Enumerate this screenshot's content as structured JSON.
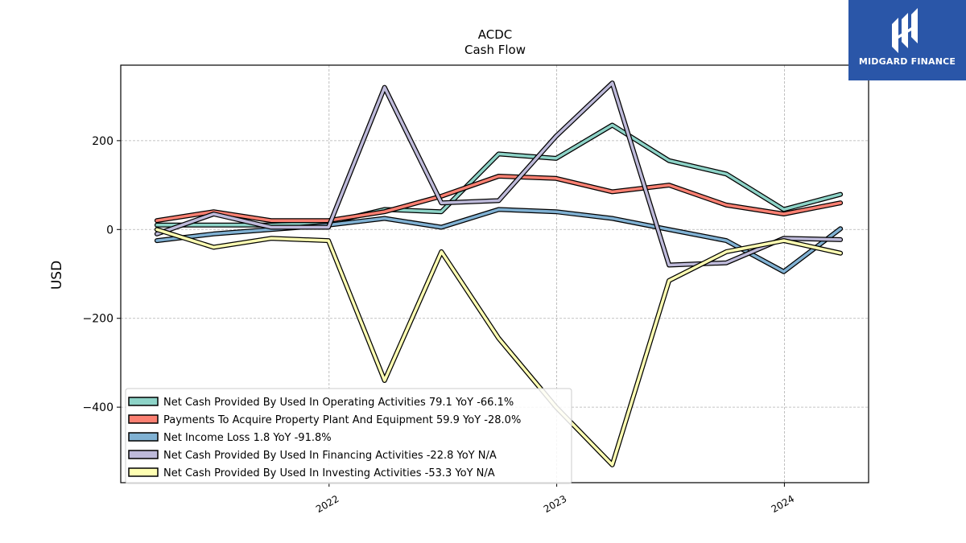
{
  "brand": {
    "name": "MIDGARD FINANCE",
    "color": "#2a56a8"
  },
  "chart_data": {
    "type": "line",
    "title": "ACDC",
    "subtitle": "Cash Flow",
    "ylabel": "USD",
    "xlabel": "",
    "x": [
      "2021-03-31",
      "2021-06-30",
      "2021-09-30",
      "2021-12-31",
      "2022-03-31",
      "2022-06-30",
      "2022-09-30",
      "2022-12-31",
      "2023-03-31",
      "2023-06-30",
      "2023-09-30",
      "2023-12-31",
      "2024-03-31"
    ],
    "xlim": [
      "2021-02-01",
      "2024-05-15"
    ],
    "ylim": [
      -570,
      370
    ],
    "xticks": [
      {
        "date": "2022-01-01",
        "label": "2022"
      },
      {
        "date": "2023-01-01",
        "label": "2023"
      },
      {
        "date": "2024-01-01",
        "label": "2024"
      }
    ],
    "yticks": [
      {
        "value": 200,
        "label": "200"
      },
      {
        "value": 0,
        "label": "0"
      },
      {
        "value": -200,
        "label": "−200"
      },
      {
        "value": -400,
        "label": "−400"
      }
    ],
    "grid": true,
    "legend_position": "bottom-left",
    "series": [
      {
        "name": "Net Cash Provided By Used In Operating Activities  79.1 YoY -66.1%",
        "color": "#8dd3c7",
        "values": [
          10,
          10,
          10,
          15,
          45,
          40,
          170,
          160,
          235,
          155,
          125,
          45,
          79.1
        ]
      },
      {
        "name": "Payments To Acquire Property Plant And Equipment  59.9 YoY -28.0%",
        "color": "#fb8072",
        "values": [
          20,
          40,
          20,
          20,
          40,
          75,
          120,
          115,
          85,
          100,
          55,
          35,
          59.9
        ]
      },
      {
        "name": "Net Income Loss  1.8 YoY -91.8%",
        "color": "#80b1d3",
        "values": [
          -25,
          -10,
          0,
          10,
          25,
          5,
          45,
          40,
          25,
          0,
          -25,
          -95,
          1.8
        ]
      },
      {
        "name": "Net Cash Provided By Used In Financing Activities  -22.8 YoY N/A",
        "color": "#bebada",
        "values": [
          -10,
          35,
          5,
          5,
          320,
          60,
          65,
          210,
          330,
          -80,
          -75,
          -20,
          -22.8
        ]
      },
      {
        "name": "Net Cash Provided By Used In Investing Activities  -53.3 YoY N/A",
        "color": "#ffffb3",
        "values": [
          0,
          -40,
          -20,
          -25,
          -340,
          -50,
          -245,
          -400,
          -530,
          -115,
          -50,
          -25,
          -53.3
        ]
      }
    ]
  }
}
